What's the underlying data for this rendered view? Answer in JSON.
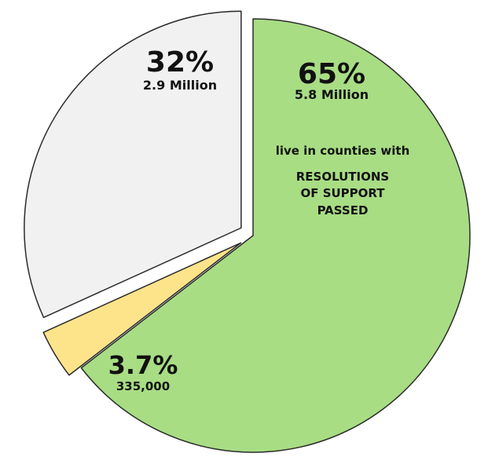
{
  "chart_data": {
    "type": "pie",
    "title": "",
    "slices": [
      {
        "percent_label": "65%",
        "value": 65,
        "amount_label": "5.8 Million",
        "color": "#a8dd84"
      },
      {
        "percent_label": "3.7%",
        "value": 3.7,
        "amount_label": "335,000",
        "color": "#fde48a"
      },
      {
        "percent_label": "32%",
        "value": 32,
        "amount_label": "2.9 Million",
        "color": "#f1f1f1"
      }
    ],
    "annotation": {
      "line1": "live in counties with",
      "line2": "RESOLUTIONS",
      "line3": "OF SUPPORT",
      "line4": "PASSED"
    },
    "legend": "none",
    "exploded": true
  }
}
